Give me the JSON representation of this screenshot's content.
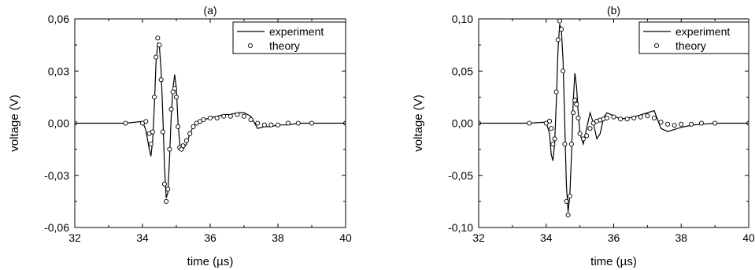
{
  "chart_data": [
    {
      "type": "line",
      "panel_label": "(a)",
      "xlabel": "time (µs)",
      "ylabel": "voltage (V)",
      "xlim": [
        32,
        40
      ],
      "ylim": [
        -0.06,
        0.06
      ],
      "xticks": [
        32,
        34,
        36,
        38,
        40
      ],
      "xtick_labels": [
        "32",
        "34",
        "36",
        "38",
        "40"
      ],
      "yticks": [
        -0.06,
        -0.03,
        0.0,
        0.03,
        0.06
      ],
      "ytick_labels": [
        "-0,06",
        "-0,03",
        "0,00",
        "0,03",
        "0,06"
      ],
      "legend": {
        "position": "top-right",
        "entries": [
          "experiment",
          "theory"
        ]
      },
      "series": [
        {
          "name": "experiment",
          "style": "line",
          "x": [
            32.0,
            33.5,
            34.0,
            34.1,
            34.2,
            34.25,
            34.3,
            34.35,
            34.4,
            34.45,
            34.5,
            34.55,
            34.6,
            34.65,
            34.7,
            34.75,
            34.8,
            34.85,
            34.9,
            34.95,
            35.0,
            35.05,
            35.1,
            35.15,
            35.2,
            35.3,
            35.4,
            35.5,
            35.6,
            35.7,
            35.8,
            36.0,
            36.2,
            36.4,
            36.6,
            36.8,
            37.0,
            37.2,
            37.4,
            37.6,
            37.8,
            38.0,
            38.3,
            38.6,
            39.0,
            40.0
          ],
          "y": [
            0.0,
            0.0,
            0.001,
            -0.004,
            -0.015,
            -0.019,
            -0.01,
            0.01,
            0.035,
            0.046,
            0.044,
            0.03,
            0.005,
            -0.025,
            -0.043,
            -0.04,
            -0.02,
            0.005,
            0.02,
            0.028,
            0.02,
            0.0,
            -0.012,
            -0.016,
            -0.015,
            -0.012,
            -0.006,
            -0.002,
            0.0,
            0.001,
            0.002,
            0.003,
            0.004,
            0.005,
            0.005,
            0.006,
            0.006,
            0.004,
            -0.003,
            -0.002,
            -0.002,
            -0.001,
            -0.001,
            0.0,
            0.0,
            0.0
          ]
        },
        {
          "name": "theory",
          "style": "markers",
          "x": [
            32.0,
            33.5,
            34.0,
            34.1,
            34.2,
            34.25,
            34.3,
            34.35,
            34.4,
            34.45,
            34.5,
            34.55,
            34.6,
            34.65,
            34.7,
            34.75,
            34.8,
            34.85,
            34.9,
            34.95,
            35.0,
            35.05,
            35.1,
            35.15,
            35.2,
            35.3,
            35.4,
            35.5,
            35.6,
            35.7,
            35.8,
            36.0,
            36.2,
            36.4,
            36.6,
            36.8,
            37.0,
            37.2,
            37.4,
            37.6,
            37.8,
            38.0,
            38.3,
            38.6,
            39.0,
            40.0
          ],
          "y": [
            0.0,
            0.0,
            0.0,
            0.001,
            -0.006,
            -0.012,
            -0.005,
            0.015,
            0.038,
            0.049,
            0.045,
            0.025,
            -0.005,
            -0.035,
            -0.045,
            -0.038,
            -0.015,
            0.008,
            0.018,
            0.02,
            0.015,
            -0.002,
            -0.014,
            -0.015,
            -0.013,
            -0.01,
            -0.006,
            -0.002,
            0.0,
            0.001,
            0.002,
            0.003,
            0.003,
            0.004,
            0.004,
            0.005,
            0.004,
            0.002,
            0.0,
            -0.001,
            -0.001,
            -0.001,
            0.0,
            0.0,
            0.0,
            0.0
          ]
        }
      ]
    },
    {
      "type": "line",
      "panel_label": "(b)",
      "xlabel": "time (µs)",
      "ylabel": "voltage (V)",
      "xlim": [
        32,
        40
      ],
      "ylim": [
        -0.1,
        0.1
      ],
      "xticks": [
        32,
        34,
        36,
        38,
        40
      ],
      "xtick_labels": [
        "32",
        "34",
        "36",
        "38",
        "40"
      ],
      "yticks": [
        -0.1,
        -0.05,
        0.0,
        0.05,
        0.1
      ],
      "ytick_labels": [
        "-0,10",
        "-0,05",
        "0,00",
        "0,05",
        "0,10"
      ],
      "legend": {
        "position": "top-right",
        "entries": [
          "experiment",
          "theory"
        ]
      },
      "series": [
        {
          "name": "experiment",
          "style": "line",
          "x": [
            32.0,
            33.5,
            34.0,
            34.1,
            34.15,
            34.2,
            34.25,
            34.3,
            34.35,
            34.4,
            34.45,
            34.5,
            34.55,
            34.6,
            34.65,
            34.7,
            34.75,
            34.8,
            34.85,
            34.9,
            34.95,
            35.0,
            35.1,
            35.2,
            35.3,
            35.4,
            35.5,
            35.6,
            35.7,
            35.8,
            36.0,
            36.2,
            36.4,
            36.6,
            36.8,
            37.0,
            37.2,
            37.4,
            37.6,
            37.8,
            38.0,
            38.3,
            38.6,
            39.0,
            40.0
          ],
          "y": [
            0.0,
            0.0,
            0.001,
            -0.01,
            -0.03,
            -0.036,
            -0.02,
            0.02,
            0.07,
            0.095,
            0.09,
            0.06,
            0.0,
            -0.06,
            -0.085,
            -0.07,
            -0.03,
            0.02,
            0.048,
            0.035,
            0.01,
            -0.01,
            -0.02,
            -0.005,
            0.01,
            0.0,
            -0.015,
            -0.01,
            0.005,
            0.01,
            0.007,
            0.004,
            0.005,
            0.006,
            0.008,
            0.01,
            0.012,
            -0.005,
            -0.008,
            -0.006,
            -0.004,
            -0.002,
            -0.001,
            0.0,
            0.0
          ]
        },
        {
          "name": "theory",
          "style": "markers",
          "x": [
            32.0,
            33.5,
            34.0,
            34.1,
            34.15,
            34.2,
            34.25,
            34.3,
            34.35,
            34.4,
            34.45,
            34.5,
            34.55,
            34.6,
            34.65,
            34.7,
            34.75,
            34.8,
            34.85,
            34.9,
            34.95,
            35.0,
            35.1,
            35.2,
            35.3,
            35.4,
            35.5,
            35.6,
            35.7,
            35.8,
            36.0,
            36.2,
            36.4,
            36.6,
            36.8,
            37.0,
            37.2,
            37.4,
            37.6,
            37.8,
            38.0,
            38.3,
            38.6,
            39.0,
            40.0
          ],
          "y": [
            0.0,
            0.0,
            0.0,
            0.002,
            -0.005,
            -0.02,
            -0.015,
            0.03,
            0.08,
            0.098,
            0.09,
            0.05,
            -0.02,
            -0.075,
            -0.088,
            -0.07,
            -0.02,
            0.01,
            0.022,
            0.018,
            0.005,
            -0.01,
            -0.015,
            -0.012,
            -0.005,
            0.0,
            0.002,
            0.003,
            0.004,
            0.005,
            0.006,
            0.004,
            0.004,
            0.005,
            0.006,
            0.007,
            0.005,
            0.001,
            -0.001,
            -0.002,
            -0.001,
            -0.001,
            0.0,
            0.0,
            0.0
          ]
        }
      ]
    }
  ]
}
